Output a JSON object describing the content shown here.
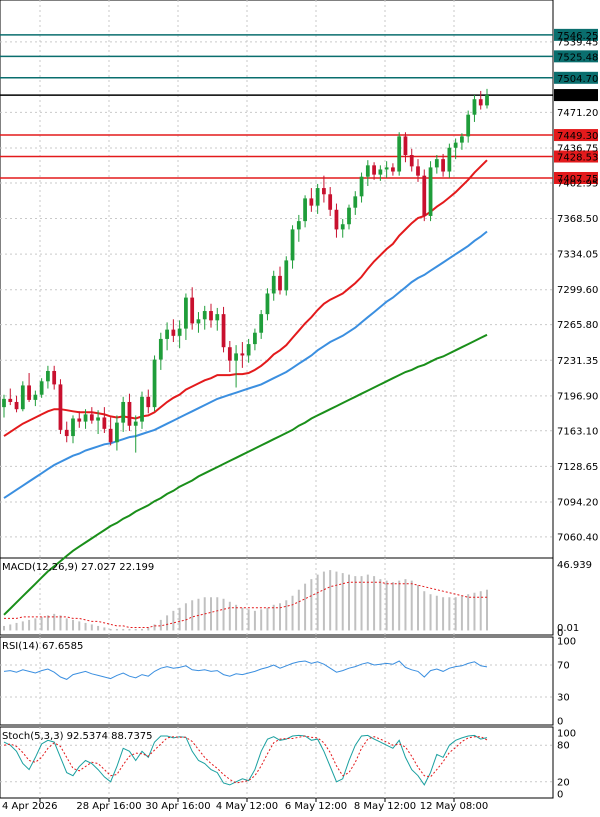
{
  "colors": {
    "up": "#1f9d3a",
    "down": "#c8102e",
    "ema_fast": "#e31a1c",
    "ema_mid": "#3b8fe0",
    "ema_slow": "#1a8f1a",
    "resistance": "#0a6e6e",
    "support": "#e31a1c",
    "current": "#000000",
    "grid": "#c9c9c9",
    "macd_hist": "#c0c0c0",
    "macd_signal": "#e31a1c",
    "rsi": "#3b8fe0",
    "stoch_k": "#1aa0a0",
    "stoch_d": "#e31a1c"
  },
  "chart_data": [
    {
      "type": "candlestick",
      "title": "",
      "ylim": [
        7040,
        7580
      ],
      "grid": true,
      "y_ticks": [
        "7546.25",
        "7539.45",
        "7525.48",
        "7504.70",
        "7488.00",
        "7471.20",
        "7449.30",
        "7436.75",
        "7428.53",
        "7407.75",
        "7402.95",
        "7368.50",
        "7334.05",
        "7299.60",
        "7265.80",
        "7231.35",
        "7196.90",
        "7163.10",
        "7128.65",
        "7094.20",
        "7060.40"
      ],
      "x_ticks": [
        "4 Apr 2026",
        "28 Apr 16:00",
        "30 Apr 16:00",
        "4 May 12:00",
        "6 May 12:00",
        "8 May 12:00",
        "12 May 08:00"
      ],
      "levels": {
        "resistance": [
          7546.25,
          7525.48,
          7504.7
        ],
        "support": [
          7449.3,
          7428.53,
          7407.75
        ],
        "current": 7488.0
      },
      "candles": [
        [
          7186,
          7198,
          7176,
          7194
        ],
        [
          7194,
          7204,
          7188,
          7191
        ],
        [
          7191,
          7197,
          7181,
          7184
        ],
        [
          7184,
          7211,
          7182,
          7207
        ],
        [
          7207,
          7219,
          7191,
          7193
        ],
        [
          7193,
          7202,
          7187,
          7198
        ],
        [
          7198,
          7214,
          7195,
          7211
        ],
        [
          7211,
          7226,
          7204,
          7221
        ],
        [
          7221,
          7226,
          7203,
          7208
        ],
        [
          7208,
          7213,
          7160,
          7164
        ],
        [
          7164,
          7172,
          7152,
          7158
        ],
        [
          7158,
          7178,
          7151,
          7175
        ],
        [
          7175,
          7182,
          7166,
          7172
        ],
        [
          7172,
          7184,
          7165,
          7179
        ],
        [
          7179,
          7186,
          7170,
          7173
        ],
        [
          7173,
          7183,
          7160,
          7176
        ],
        [
          7176,
          7186,
          7161,
          7165
        ],
        [
          7165,
          7176,
          7149,
          7152
        ],
        [
          7152,
          7178,
          7144,
          7171
        ],
        [
          7171,
          7196,
          7162,
          7191
        ],
        [
          7191,
          7199,
          7163,
          7168
        ],
        [
          7168,
          7178,
          7142,
          7172
        ],
        [
          7172,
          7201,
          7165,
          7196
        ],
        [
          7196,
          7203,
          7180,
          7186
        ],
        [
          7186,
          7236,
          7182,
          7232
        ],
        [
          7232,
          7258,
          7222,
          7252
        ],
        [
          7252,
          7268,
          7241,
          7261
        ],
        [
          7261,
          7271,
          7249,
          7255
        ],
        [
          7255,
          7270,
          7243,
          7262
        ],
        [
          7262,
          7296,
          7251,
          7292
        ],
        [
          7292,
          7302,
          7261,
          7267
        ],
        [
          7267,
          7278,
          7258,
          7271
        ],
        [
          7271,
          7284,
          7261,
          7279
        ],
        [
          7279,
          7286,
          7263,
          7270
        ],
        [
          7270,
          7282,
          7260,
          7276
        ],
        [
          7276,
          7283,
          7239,
          7244
        ],
        [
          7244,
          7250,
          7220,
          7231
        ],
        [
          7231,
          7246,
          7205,
          7238
        ],
        [
          7238,
          7249,
          7224,
          7236
        ],
        [
          7236,
          7252,
          7229,
          7247
        ],
        [
          7247,
          7262,
          7241,
          7258
        ],
        [
          7258,
          7280,
          7252,
          7276
        ],
        [
          7276,
          7301,
          7270,
          7296
        ],
        [
          7296,
          7318,
          7289,
          7313
        ],
        [
          7313,
          7322,
          7295,
          7299
        ],
        [
          7299,
          7332,
          7294,
          7328
        ],
        [
          7328,
          7362,
          7320,
          7358
        ],
        [
          7358,
          7372,
          7346,
          7366
        ],
        [
          7366,
          7391,
          7360,
          7388
        ],
        [
          7388,
          7398,
          7375,
          7381
        ],
        [
          7381,
          7402,
          7373,
          7398
        ],
        [
          7398,
          7410,
          7384,
          7392
        ],
        [
          7392,
          7399,
          7371,
          7377
        ],
        [
          7377,
          7383,
          7350,
          7358
        ],
        [
          7358,
          7368,
          7350,
          7363
        ],
        [
          7363,
          7382,
          7358,
          7379
        ],
        [
          7379,
          7395,
          7372,
          7390
        ],
        [
          7390,
          7413,
          7384,
          7409
        ],
        [
          7409,
          7425,
          7400,
          7420
        ],
        [
          7420,
          7423,
          7406,
          7411
        ],
        [
          7411,
          7420,
          7405,
          7416
        ],
        [
          7416,
          7424,
          7408,
          7418
        ],
        [
          7418,
          7422,
          7410,
          7414
        ],
        [
          7414,
          7452,
          7410,
          7448
        ],
        [
          7448,
          7452,
          7423,
          7430
        ],
        [
          7430,
          7436,
          7414,
          7419
        ],
        [
          7419,
          7426,
          7404,
          7410
        ],
        [
          7410,
          7416,
          7366,
          7371
        ],
        [
          7371,
          7424,
          7366,
          7418
        ],
        [
          7418,
          7430,
          7412,
          7426
        ],
        [
          7426,
          7431,
          7409,
          7414
        ],
        [
          7414,
          7441,
          7408,
          7437
        ],
        [
          7437,
          7446,
          7426,
          7442
        ],
        [
          7442,
          7451,
          7435,
          7448
        ],
        [
          7448,
          7473,
          7442,
          7469
        ],
        [
          7469,
          7488,
          7462,
          7484
        ],
        [
          7484,
          7492,
          7474,
          7478
        ],
        [
          7478,
          7494,
          7475,
          7488
        ]
      ],
      "ema_fast": [
        7158,
        7162,
        7166,
        7170,
        7173,
        7176,
        7179,
        7182,
        7184,
        7184,
        7183,
        7182,
        7181,
        7181,
        7181,
        7180,
        7179,
        7177,
        7176,
        7177,
        7176,
        7175,
        7177,
        7178,
        7181,
        7186,
        7191,
        7195,
        7198,
        7203,
        7206,
        7209,
        7212,
        7214,
        7217,
        7217,
        7217,
        7218,
        7218,
        7219,
        7222,
        7226,
        7231,
        7237,
        7241,
        7246,
        7253,
        7260,
        7267,
        7273,
        7280,
        7286,
        7290,
        7293,
        7296,
        7301,
        7306,
        7312,
        7320,
        7327,
        7333,
        7339,
        7344,
        7352,
        7358,
        7364,
        7369,
        7371,
        7375,
        7380,
        7384,
        7389,
        7394,
        7400,
        7406,
        7413,
        7419,
        7425
      ],
      "ema_mid": [
        7098,
        7102,
        7106,
        7110,
        7114,
        7118,
        7122,
        7126,
        7130,
        7133,
        7136,
        7139,
        7141,
        7144,
        7146,
        7148,
        7150,
        7151,
        7153,
        7155,
        7157,
        7158,
        7160,
        7162,
        7164,
        7167,
        7170,
        7173,
        7176,
        7179,
        7182,
        7185,
        7188,
        7191,
        7194,
        7196,
        7198,
        7200,
        7202,
        7204,
        7206,
        7208,
        7211,
        7214,
        7217,
        7220,
        7224,
        7228,
        7232,
        7236,
        7241,
        7245,
        7249,
        7252,
        7255,
        7259,
        7263,
        7268,
        7273,
        7278,
        7283,
        7288,
        7292,
        7297,
        7302,
        7307,
        7311,
        7314,
        7318,
        7322,
        7326,
        7330,
        7334,
        7338,
        7342,
        7347,
        7351,
        7356
      ],
      "ema_slow": [
        6985,
        6991,
        6997,
        7003,
        7009,
        7015,
        7021,
        7027,
        7032,
        7037,
        7042,
        7047,
        7051,
        7055,
        7059,
        7063,
        7067,
        7071,
        7074,
        7078,
        7081,
        7085,
        7088,
        7091,
        7095,
        7098,
        7102,
        7105,
        7109,
        7112,
        7115,
        7119,
        7122,
        7125,
        7128,
        7131,
        7134,
        7137,
        7140,
        7143,
        7146,
        7149,
        7152,
        7155,
        7158,
        7161,
        7164,
        7168,
        7171,
        7175,
        7178,
        7181,
        7184,
        7187,
        7190,
        7193,
        7196,
        7199,
        7202,
        7205,
        7208,
        7211,
        7214,
        7217,
        7220,
        7222,
        7225,
        7227,
        7230,
        7233,
        7235,
        7238,
        7241,
        7244,
        7247,
        7250,
        7253,
        7256
      ]
    },
    {
      "type": "bar",
      "label": "MACD(12,26,9) 27.027 22.199",
      "y_ticks": [
        "46.939",
        "0.01",
        "0"
      ],
      "ylim": [
        -3,
        48
      ],
      "hist": [
        3,
        4,
        5,
        6,
        7,
        8,
        9,
        10,
        11,
        10,
        8,
        7,
        6,
        5,
        4,
        3,
        2,
        1,
        1,
        1,
        1,
        1,
        1,
        2,
        4,
        7,
        10,
        13,
        15,
        18,
        20,
        21,
        22,
        22,
        22,
        21,
        19,
        17,
        15,
        14,
        13,
        14,
        15,
        17,
        18,
        20,
        23,
        27,
        31,
        34,
        37,
        39,
        40,
        39,
        38,
        37,
        36,
        36,
        37,
        36,
        34,
        33,
        32,
        33,
        34,
        33,
        30,
        26,
        24,
        23,
        22,
        22,
        22,
        23,
        24,
        25,
        26,
        27
      ],
      "signal": [
        8,
        8,
        8,
        9,
        9,
        9,
        9,
        9,
        9,
        9,
        9,
        8,
        8,
        7,
        6,
        6,
        5,
        4,
        3,
        3,
        2,
        2,
        2,
        2,
        3,
        3,
        4,
        5,
        6,
        7,
        9,
        10,
        11,
        12,
        13,
        14,
        15,
        15,
        15,
        15,
        15,
        15,
        15,
        15,
        15,
        16,
        17,
        19,
        21,
        23,
        25,
        27,
        29,
        30,
        31,
        32,
        32,
        32,
        32,
        32,
        32,
        31,
        31,
        31,
        31,
        31,
        30,
        29,
        28,
        27,
        26,
        25,
        24,
        23,
        22,
        22,
        22,
        22
      ]
    },
    {
      "type": "line",
      "label": "RSI(14) 67.6585",
      "y_ticks": [
        "100",
        "70",
        "30",
        "0"
      ],
      "ylim": [
        0,
        100
      ],
      "values": [
        62,
        63,
        61,
        64,
        62,
        60,
        63,
        65,
        61,
        55,
        52,
        58,
        60,
        62,
        59,
        57,
        55,
        53,
        57,
        60,
        56,
        54,
        58,
        56,
        62,
        66,
        68,
        66,
        67,
        69,
        64,
        63,
        64,
        62,
        63,
        58,
        56,
        59,
        58,
        60,
        62,
        65,
        67,
        70,
        66,
        69,
        72,
        74,
        75,
        72,
        74,
        71,
        66,
        61,
        63,
        66,
        68,
        71,
        73,
        70,
        71,
        72,
        71,
        75,
        67,
        64,
        62,
        55,
        63,
        65,
        62,
        66,
        68,
        69,
        72,
        74,
        69,
        67.66
      ]
    },
    {
      "type": "line",
      "label": "Stoch(5,3,3) 92.5374 88.7375",
      "y_ticks": [
        "100",
        "80",
        "20",
        "0"
      ],
      "ylim": [
        0,
        100
      ],
      "k": [
        85,
        80,
        70,
        50,
        40,
        60,
        82,
        88,
        85,
        60,
        35,
        30,
        45,
        55,
        50,
        40,
        28,
        20,
        45,
        75,
        70,
        55,
        70,
        60,
        85,
        95,
        95,
        92,
        94,
        93,
        70,
        55,
        50,
        40,
        35,
        18,
        15,
        20,
        25,
        22,
        40,
        70,
        90,
        94,
        88,
        90,
        95,
        96,
        95,
        88,
        90,
        70,
        45,
        20,
        25,
        55,
        80,
        95,
        96,
        90,
        85,
        80,
        75,
        88,
        60,
        40,
        30,
        15,
        35,
        65,
        60,
        80,
        88,
        92,
        95,
        96,
        90,
        92.54
      ],
      "d": [
        80,
        82,
        78,
        68,
        55,
        52,
        60,
        75,
        84,
        78,
        60,
        42,
        38,
        45,
        52,
        50,
        40,
        30,
        32,
        48,
        62,
        67,
        66,
        62,
        72,
        82,
        92,
        94,
        93,
        93,
        86,
        73,
        60,
        50,
        42,
        32,
        24,
        18,
        20,
        22,
        30,
        46,
        66,
        84,
        90,
        91,
        91,
        93,
        95,
        93,
        92,
        84,
        68,
        46,
        30,
        35,
        52,
        75,
        90,
        94,
        90,
        85,
        80,
        82,
        77,
        62,
        44,
        30,
        28,
        40,
        53,
        68,
        76,
        86,
        92,
        94,
        94,
        88.74
      ]
    }
  ]
}
